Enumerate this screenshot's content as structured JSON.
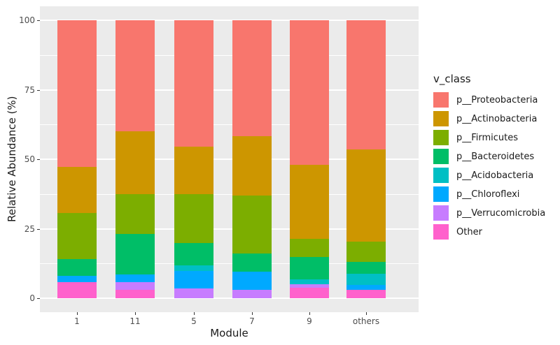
{
  "figure": {
    "background": "#FFFFFF",
    "panel_background": "#EBEBEB",
    "grid_color": "#FFFFFF",
    "tick_text_color": "#4D4D4D"
  },
  "y_axis": {
    "title": "Relative Abundance (%)",
    "tick_labels": [
      "0",
      "25",
      "50",
      "75",
      "100"
    ],
    "tick_values": [
      0,
      25,
      50,
      75,
      100
    ]
  },
  "x_axis": {
    "title": "Module",
    "tick_labels": [
      "1",
      "11",
      "5",
      "7",
      "9",
      "others"
    ]
  },
  "legend": {
    "title": "v_class",
    "position": "right"
  },
  "chart_data": {
    "type": "bar",
    "stacked": true,
    "title": "",
    "xlabel": "Module",
    "ylabel": "Relative Abundance (%)",
    "ylim": [
      0,
      100
    ],
    "grid": true,
    "legend_position": "right",
    "legend_title": "v_class",
    "categories": [
      "1",
      "11",
      "5",
      "7",
      "9",
      "others"
    ],
    "series": [
      {
        "name": "p__Proteobacteria",
        "color": "#F8766D",
        "values": [
          52.8,
          39.9,
          45.5,
          41.7,
          52.0,
          46.5
        ]
      },
      {
        "name": "p__Actinobacteria",
        "color": "#CD9600",
        "values": [
          16.5,
          22.7,
          17.1,
          21.4,
          26.6,
          33.1
        ]
      },
      {
        "name": "p__Firmicutes",
        "color": "#7CAE00",
        "values": [
          16.6,
          14.3,
          17.6,
          20.8,
          6.6,
          7.3
        ]
      },
      {
        "name": "p__Bacteroidetes",
        "color": "#00BE67",
        "values": [
          6.1,
          14.6,
          8.0,
          6.6,
          8.0,
          4.3
        ]
      },
      {
        "name": "p__Acidobacteria",
        "color": "#00BFC4",
        "values": [
          0,
          0,
          2.0,
          0,
          1.8,
          4.0
        ]
      },
      {
        "name": "p__Chloroflexi",
        "color": "#00A9FF",
        "values": [
          2.1,
          2.7,
          6.3,
          6.5,
          0,
          1.9
        ]
      },
      {
        "name": "p__Verrucomicrobia",
        "color": "#C77CFF",
        "values": [
          0,
          2.8,
          3.5,
          3.0,
          1.2,
          0
        ]
      },
      {
        "name": "Other",
        "color": "#FF61CC",
        "values": [
          5.9,
          3.0,
          0,
          0,
          3.8,
          2.9
        ]
      }
    ],
    "stack_order_bottom_to_top": [
      "Other",
      "p__Verrucomicrobia",
      "p__Chloroflexi",
      "p__Acidobacteria",
      "p__Bacteroidetes",
      "p__Firmicutes",
      "p__Actinobacteria",
      "p__Proteobacteria"
    ]
  }
}
